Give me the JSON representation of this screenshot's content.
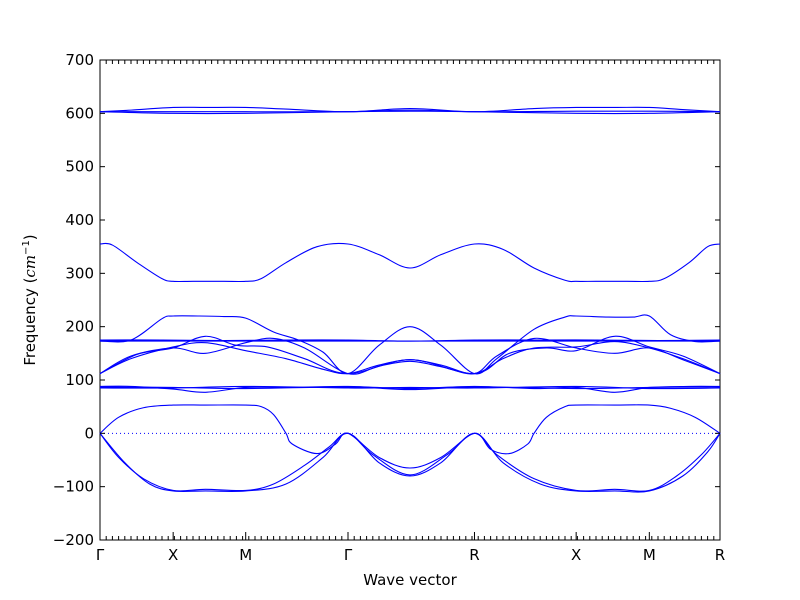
{
  "chart_data": {
    "type": "line",
    "xlabel": "Wave vector",
    "ylabel_text": "Frequency (",
    "ylabel_unit": "cm",
    "ylabel_exp": "−1",
    "ylabel_close": ")",
    "ylim": [
      -200,
      700
    ],
    "yticks": [
      -200,
      -100,
      0,
      100,
      200,
      300,
      400,
      500,
      600,
      700
    ],
    "xlim": [
      0,
      1
    ],
    "x_points": [
      {
        "label": "Γ",
        "x": 0.0
      },
      {
        "label": "X",
        "x": 0.118
      },
      {
        "label": "M",
        "x": 0.235
      },
      {
        "label": "Γ",
        "x": 0.4
      },
      {
        "label": "R",
        "x": 0.604
      },
      {
        "label": "X",
        "x": 0.768
      },
      {
        "label": "M",
        "x": 0.886
      },
      {
        "label": "R",
        "x": 1.0
      }
    ],
    "minor_ticks_per_unit": 100,
    "zero_line": true,
    "line_color": "#0000ff",
    "series": [
      {
        "points": [
          [
            0,
            603
          ],
          [
            0.05,
            606
          ],
          [
            0.118,
            611
          ],
          [
            0.17,
            611
          ],
          [
            0.235,
            611
          ],
          [
            0.3,
            608
          ],
          [
            0.4,
            603
          ],
          [
            0.5,
            609
          ],
          [
            0.604,
            603
          ],
          [
            0.7,
            609
          ],
          [
            0.768,
            611
          ],
          [
            0.83,
            611
          ],
          [
            0.886,
            611
          ],
          [
            0.94,
            607
          ],
          [
            1.0,
            603
          ]
        ]
      },
      {
        "points": [
          [
            0,
            603
          ],
          [
            0.118,
            600
          ],
          [
            0.235,
            600
          ],
          [
            0.4,
            603
          ],
          [
            0.5,
            604
          ],
          [
            0.604,
            603
          ],
          [
            0.768,
            600
          ],
          [
            0.886,
            600
          ],
          [
            1.0,
            603
          ]
        ]
      },
      {
        "points": [
          [
            0,
            603
          ],
          [
            0.118,
            603
          ],
          [
            0.235,
            603
          ],
          [
            0.4,
            603
          ],
          [
            0.5,
            606
          ],
          [
            0.604,
            603
          ],
          [
            0.768,
            604
          ],
          [
            0.886,
            604
          ],
          [
            1.0,
            603
          ]
        ]
      },
      {
        "points": [
          [
            0,
            355
          ],
          [
            0.02,
            353
          ],
          [
            0.06,
            320
          ],
          [
            0.1,
            290
          ],
          [
            0.118,
            285
          ],
          [
            0.15,
            285
          ],
          [
            0.2,
            285
          ],
          [
            0.235,
            285
          ],
          [
            0.26,
            290
          ],
          [
            0.3,
            320
          ],
          [
            0.35,
            350
          ],
          [
            0.4,
            355
          ],
          [
            0.45,
            335
          ],
          [
            0.5,
            310
          ],
          [
            0.55,
            335
          ],
          [
            0.604,
            355
          ],
          [
            0.65,
            345
          ],
          [
            0.7,
            310
          ],
          [
            0.75,
            287
          ],
          [
            0.768,
            285
          ],
          [
            0.8,
            285
          ],
          [
            0.85,
            285
          ],
          [
            0.886,
            285
          ],
          [
            0.91,
            290
          ],
          [
            0.95,
            320
          ],
          [
            0.98,
            350
          ],
          [
            1.0,
            355
          ]
        ]
      },
      {
        "points": [
          [
            0,
            173
          ],
          [
            0.05,
            175
          ],
          [
            0.1,
            215
          ],
          [
            0.118,
            220
          ],
          [
            0.16,
            220
          ],
          [
            0.2,
            219
          ],
          [
            0.235,
            216
          ],
          [
            0.28,
            190
          ],
          [
            0.32,
            175
          ],
          [
            0.36,
            152
          ],
          [
            0.4,
            112
          ],
          [
            0.45,
            165
          ],
          [
            0.5,
            200
          ],
          [
            0.55,
            165
          ],
          [
            0.604,
            112
          ],
          [
            0.64,
            140
          ],
          [
            0.7,
            195
          ],
          [
            0.75,
            218
          ],
          [
            0.768,
            220
          ],
          [
            0.82,
            218
          ],
          [
            0.86,
            218
          ],
          [
            0.886,
            220
          ],
          [
            0.92,
            185
          ],
          [
            0.96,
            172
          ],
          [
            1.0,
            173
          ]
        ]
      },
      {
        "points": [
          [
            0,
            173
          ],
          [
            0.1,
            173
          ],
          [
            0.2,
            173
          ],
          [
            0.3,
            173
          ],
          [
            0.4,
            173
          ],
          [
            0.5,
            173
          ],
          [
            0.604,
            173
          ],
          [
            0.7,
            173
          ],
          [
            0.8,
            173
          ],
          [
            0.9,
            173
          ],
          [
            1.0,
            173
          ]
        ]
      },
      {
        "points": [
          [
            0,
            175
          ],
          [
            0.1,
            175
          ],
          [
            0.2,
            174
          ],
          [
            0.3,
            175
          ],
          [
            0.4,
            175
          ],
          [
            0.5,
            173
          ],
          [
            0.604,
            175
          ],
          [
            0.7,
            175
          ],
          [
            0.8,
            175
          ],
          [
            0.9,
            174
          ],
          [
            1.0,
            175
          ]
        ]
      },
      {
        "points": [
          [
            0,
            112
          ],
          [
            0.05,
            140
          ],
          [
            0.118,
            162
          ],
          [
            0.17,
            170
          ],
          [
            0.235,
            155
          ],
          [
            0.3,
            140
          ],
          [
            0.36,
            120
          ],
          [
            0.4,
            112
          ],
          [
            0.45,
            128
          ],
          [
            0.5,
            138
          ],
          [
            0.55,
            128
          ],
          [
            0.604,
            112
          ],
          [
            0.65,
            140
          ],
          [
            0.7,
            160
          ],
          [
            0.768,
            162
          ],
          [
            0.83,
            172
          ],
          [
            0.886,
            160
          ],
          [
            0.94,
            140
          ],
          [
            1.0,
            112
          ]
        ]
      },
      {
        "points": [
          [
            0,
            112
          ],
          [
            0.05,
            145
          ],
          [
            0.118,
            160
          ],
          [
            0.17,
            150
          ],
          [
            0.235,
            170
          ],
          [
            0.28,
            178
          ],
          [
            0.33,
            160
          ],
          [
            0.4,
            112
          ],
          [
            0.45,
            126
          ],
          [
            0.5,
            135
          ],
          [
            0.55,
            125
          ],
          [
            0.604,
            112
          ],
          [
            0.64,
            145
          ],
          [
            0.7,
            178
          ],
          [
            0.768,
            160
          ],
          [
            0.83,
            150
          ],
          [
            0.886,
            160
          ],
          [
            0.94,
            138
          ],
          [
            1.0,
            112
          ]
        ]
      },
      {
        "points": [
          [
            0,
            112
          ],
          [
            0.06,
            148
          ],
          [
            0.118,
            160
          ],
          [
            0.17,
            182
          ],
          [
            0.22,
            165
          ],
          [
            0.27,
            162
          ],
          [
            0.33,
            140
          ],
          [
            0.4,
            112
          ],
          [
            0.5,
            138
          ],
          [
            0.604,
            112
          ],
          [
            0.66,
            150
          ],
          [
            0.72,
            160
          ],
          [
            0.768,
            155
          ],
          [
            0.83,
            182
          ],
          [
            0.886,
            162
          ],
          [
            0.94,
            145
          ],
          [
            1.0,
            112
          ]
        ]
      },
      {
        "points": [
          [
            0,
            88
          ],
          [
            0.05,
            88
          ],
          [
            0.118,
            83
          ],
          [
            0.17,
            77
          ],
          [
            0.235,
            86
          ],
          [
            0.3,
            86
          ],
          [
            0.4,
            88
          ],
          [
            0.5,
            84
          ],
          [
            0.604,
            88
          ],
          [
            0.7,
            84
          ],
          [
            0.768,
            86
          ],
          [
            0.83,
            77
          ],
          [
            0.886,
            86
          ],
          [
            0.95,
            88
          ],
          [
            1.0,
            88
          ]
        ]
      },
      {
        "points": [
          [
            0,
            87
          ],
          [
            0.118,
            86
          ],
          [
            0.235,
            84
          ],
          [
            0.4,
            87
          ],
          [
            0.5,
            82
          ],
          [
            0.604,
            87
          ],
          [
            0.768,
            84
          ],
          [
            0.886,
            86
          ],
          [
            1.0,
            87
          ]
        ]
      },
      {
        "points": [
          [
            0,
            85
          ],
          [
            0.118,
            85
          ],
          [
            0.235,
            88
          ],
          [
            0.4,
            85
          ],
          [
            0.5,
            86
          ],
          [
            0.604,
            85
          ],
          [
            0.768,
            88
          ],
          [
            0.886,
            84
          ],
          [
            1.0,
            85
          ]
        ]
      },
      {
        "points": [
          [
            0,
            0
          ],
          [
            0.03,
            30
          ],
          [
            0.07,
            48
          ],
          [
            0.118,
            53
          ],
          [
            0.17,
            53
          ],
          [
            0.235,
            53
          ],
          [
            0.26,
            50
          ],
          [
            0.28,
            35
          ],
          [
            0.3,
            0
          ],
          [
            0.31,
            -20
          ],
          [
            0.35,
            -38
          ],
          [
            0.38,
            -20
          ],
          [
            0.4,
            0
          ],
          [
            0.45,
            -45
          ],
          [
            0.5,
            -65
          ],
          [
            0.55,
            -45
          ],
          [
            0.604,
            0
          ],
          [
            0.63,
            -30
          ],
          [
            0.66,
            -38
          ],
          [
            0.69,
            -20
          ],
          [
            0.7,
            0
          ],
          [
            0.72,
            30
          ],
          [
            0.75,
            50
          ],
          [
            0.768,
            53
          ],
          [
            0.83,
            53
          ],
          [
            0.886,
            53
          ],
          [
            0.92,
            47
          ],
          [
            0.96,
            30
          ],
          [
            1.0,
            0
          ]
        ]
      },
      {
        "points": [
          [
            0,
            0
          ],
          [
            0.03,
            -45
          ],
          [
            0.07,
            -85
          ],
          [
            0.118,
            -107
          ],
          [
            0.17,
            -105
          ],
          [
            0.235,
            -107
          ],
          [
            0.28,
            -95
          ],
          [
            0.33,
            -60
          ],
          [
            0.37,
            -25
          ],
          [
            0.4,
            0
          ],
          [
            0.44,
            -40
          ],
          [
            0.5,
            -78
          ],
          [
            0.56,
            -40
          ],
          [
            0.604,
            0
          ],
          [
            0.64,
            -40
          ],
          [
            0.7,
            -85
          ],
          [
            0.768,
            -107
          ],
          [
            0.83,
            -105
          ],
          [
            0.886,
            -107
          ],
          [
            0.93,
            -80
          ],
          [
            0.97,
            -40
          ],
          [
            1.0,
            0
          ]
        ]
      },
      {
        "points": [
          [
            0,
            0
          ],
          [
            0.04,
            -55
          ],
          [
            0.08,
            -95
          ],
          [
            0.118,
            -108
          ],
          [
            0.17,
            -108
          ],
          [
            0.235,
            -108
          ],
          [
            0.3,
            -95
          ],
          [
            0.36,
            -45
          ],
          [
            0.4,
            0
          ],
          [
            0.45,
            -55
          ],
          [
            0.5,
            -80
          ],
          [
            0.55,
            -55
          ],
          [
            0.604,
            0
          ],
          [
            0.65,
            -55
          ],
          [
            0.71,
            -95
          ],
          [
            0.768,
            -108
          ],
          [
            0.83,
            -108
          ],
          [
            0.886,
            -108
          ],
          [
            0.94,
            -80
          ],
          [
            0.98,
            -35
          ],
          [
            1.0,
            0
          ]
        ]
      }
    ]
  }
}
